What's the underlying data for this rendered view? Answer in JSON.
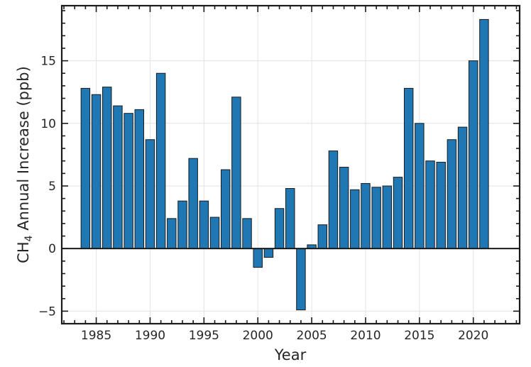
{
  "chart_data": {
    "type": "bar",
    "title": "",
    "xlabel": "Year",
    "ylabel_main": "CH",
    "ylabel_sub": "4",
    "ylabel_rest": " Annual Increase (ppb)",
    "xlim": [
      1981.8,
      2024.3
    ],
    "ylim": [
      -6.0,
      19.4
    ],
    "x_ticks": [
      1985,
      1990,
      1995,
      2000,
      2005,
      2010,
      2015,
      2020
    ],
    "x_tick_labels": [
      "1985",
      "1990",
      "1995",
      "2000",
      "2005",
      "2010",
      "2015",
      "2020"
    ],
    "y_ticks": [
      -5,
      0,
      5,
      10,
      15
    ],
    "y_tick_labels": [
      "−5",
      "0",
      "5",
      "10",
      "15"
    ],
    "grid": true,
    "bar_color": "#1f77b4",
    "bar_edge_color": "#1a1a1a",
    "x": [
      1984,
      1985,
      1986,
      1987,
      1988,
      1989,
      1990,
      1991,
      1992,
      1993,
      1994,
      1995,
      1996,
      1997,
      1998,
      1999,
      2000,
      2001,
      2002,
      2003,
      2004,
      2005,
      2006,
      2007,
      2008,
      2009,
      2010,
      2011,
      2012,
      2013,
      2014,
      2015,
      2016,
      2017,
      2018,
      2019,
      2020,
      2021
    ],
    "values": [
      12.8,
      12.3,
      12.9,
      11.4,
      10.8,
      11.1,
      8.7,
      14.0,
      2.4,
      3.8,
      7.2,
      3.8,
      2.5,
      6.3,
      12.1,
      2.4,
      -1.5,
      -0.7,
      3.2,
      4.8,
      -4.9,
      0.3,
      1.9,
      7.8,
      6.5,
      4.7,
      5.2,
      4.9,
      5.0,
      5.7,
      12.8,
      10.0,
      7.0,
      6.9,
      8.7,
      9.7,
      15.0,
      18.3
    ]
  }
}
